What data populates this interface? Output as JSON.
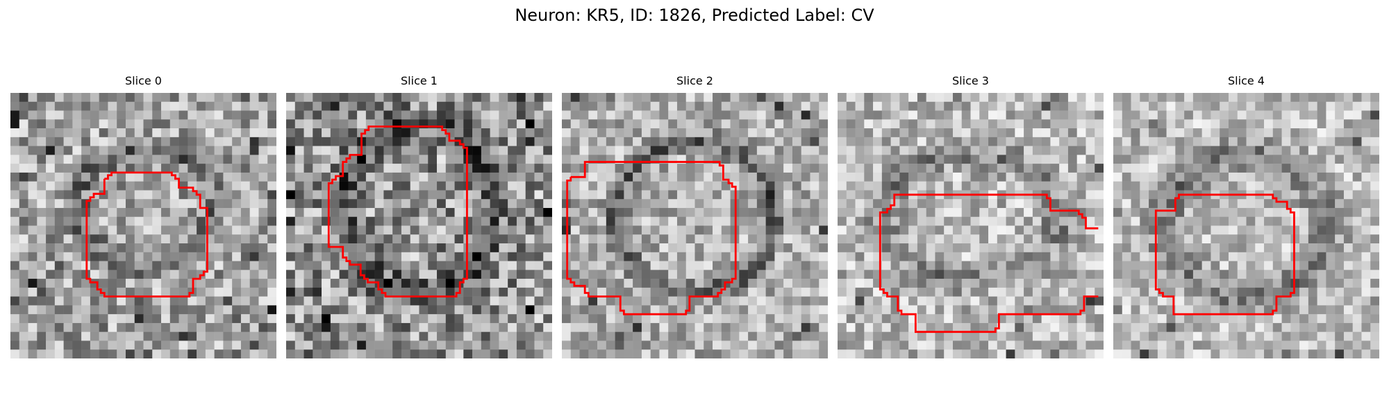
{
  "figure": {
    "title": "Neuron: KR5, ID: 1826, Predicted Label: CV",
    "outline_color": "#ff0000"
  },
  "panels": [
    {
      "title": "Slice 0"
    },
    {
      "title": "Slice 1"
    },
    {
      "title": "Slice 2"
    },
    {
      "title": "Slice 3"
    },
    {
      "title": "Slice 4"
    }
  ]
}
